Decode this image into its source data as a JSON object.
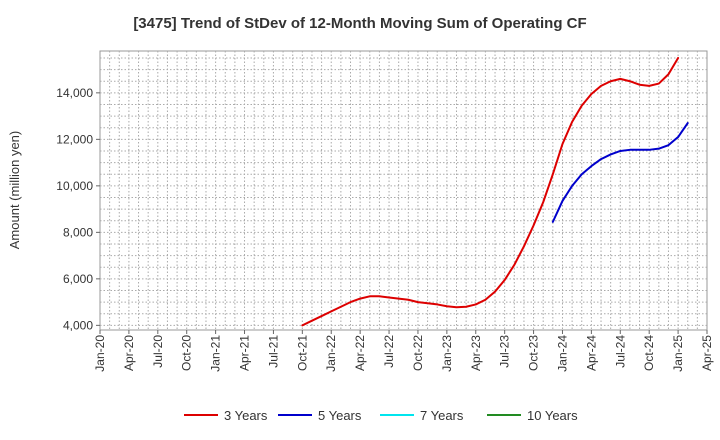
{
  "chart_data": {
    "type": "line",
    "title": "[3475]  Trend of StDev of 12-Month Moving Sum of Operating CF",
    "ylabel": "Amount (million yen)",
    "xlabel": "",
    "x_tick_labels": [
      "Jan-20",
      "Apr-20",
      "Jul-20",
      "Oct-20",
      "Jan-21",
      "Apr-21",
      "Jul-21",
      "Oct-21",
      "Jan-22",
      "Apr-22",
      "Jul-22",
      "Oct-22",
      "Jan-23",
      "Apr-23",
      "Jul-23",
      "Oct-23",
      "Jan-24",
      "Apr-24",
      "Jul-24",
      "Oct-24",
      "Jan-25",
      "Apr-25"
    ],
    "y_tick_labels": [
      "4,000",
      "6,000",
      "8,000",
      "10,000",
      "12,000",
      "14,000"
    ],
    "y_ticks": [
      4000,
      6000,
      8000,
      10000,
      12000,
      14000
    ],
    "ylim": [
      3800,
      15800
    ],
    "xlim": [
      "2020-01",
      "2025-04"
    ],
    "grid": true,
    "legend_position": "bottom",
    "series": [
      {
        "name": "3 Years",
        "color": "#dd0000",
        "points": [
          [
            "2021-10",
            4000
          ],
          [
            "2021-11",
            4200
          ],
          [
            "2021-12",
            4400
          ],
          [
            "2022-01",
            4600
          ],
          [
            "2022-02",
            4800
          ],
          [
            "2022-03",
            5000
          ],
          [
            "2022-04",
            5150
          ],
          [
            "2022-05",
            5250
          ],
          [
            "2022-06",
            5250
          ],
          [
            "2022-07",
            5200
          ],
          [
            "2022-08",
            5150
          ],
          [
            "2022-09",
            5100
          ],
          [
            "2022-10",
            5000
          ],
          [
            "2022-11",
            4950
          ],
          [
            "2022-12",
            4900
          ],
          [
            "2023-01",
            4820
          ],
          [
            "2023-02",
            4780
          ],
          [
            "2023-03",
            4800
          ],
          [
            "2023-04",
            4900
          ],
          [
            "2023-05",
            5100
          ],
          [
            "2023-06",
            5450
          ],
          [
            "2023-07",
            5950
          ],
          [
            "2023-08",
            6600
          ],
          [
            "2023-09",
            7400
          ],
          [
            "2023-10",
            8300
          ],
          [
            "2023-11",
            9300
          ],
          [
            "2023-12",
            10500
          ],
          [
            "2024-01",
            11800
          ],
          [
            "2024-02",
            12750
          ],
          [
            "2024-03",
            13450
          ],
          [
            "2024-04",
            13950
          ],
          [
            "2024-05",
            14300
          ],
          [
            "2024-06",
            14500
          ],
          [
            "2024-07",
            14600
          ],
          [
            "2024-08",
            14500
          ],
          [
            "2024-09",
            14350
          ],
          [
            "2024-10",
            14300
          ],
          [
            "2024-11",
            14400
          ],
          [
            "2024-12",
            14800
          ],
          [
            "2025-01",
            15500
          ]
        ]
      },
      {
        "name": "5 Years",
        "color": "#0000cc",
        "points": [
          [
            "2023-12",
            8450
          ],
          [
            "2024-01",
            9350
          ],
          [
            "2024-02",
            10000
          ],
          [
            "2024-03",
            10500
          ],
          [
            "2024-04",
            10850
          ],
          [
            "2024-05",
            11150
          ],
          [
            "2024-06",
            11350
          ],
          [
            "2024-07",
            11500
          ],
          [
            "2024-08",
            11550
          ],
          [
            "2024-09",
            11550
          ],
          [
            "2024-10",
            11550
          ],
          [
            "2024-11",
            11600
          ],
          [
            "2024-12",
            11750
          ],
          [
            "2025-01",
            12100
          ],
          [
            "2025-02",
            12700
          ]
        ]
      },
      {
        "name": "7 Years",
        "color": "#00e5ee",
        "points": []
      },
      {
        "name": "10 Years",
        "color": "#228b22",
        "points": []
      }
    ]
  }
}
